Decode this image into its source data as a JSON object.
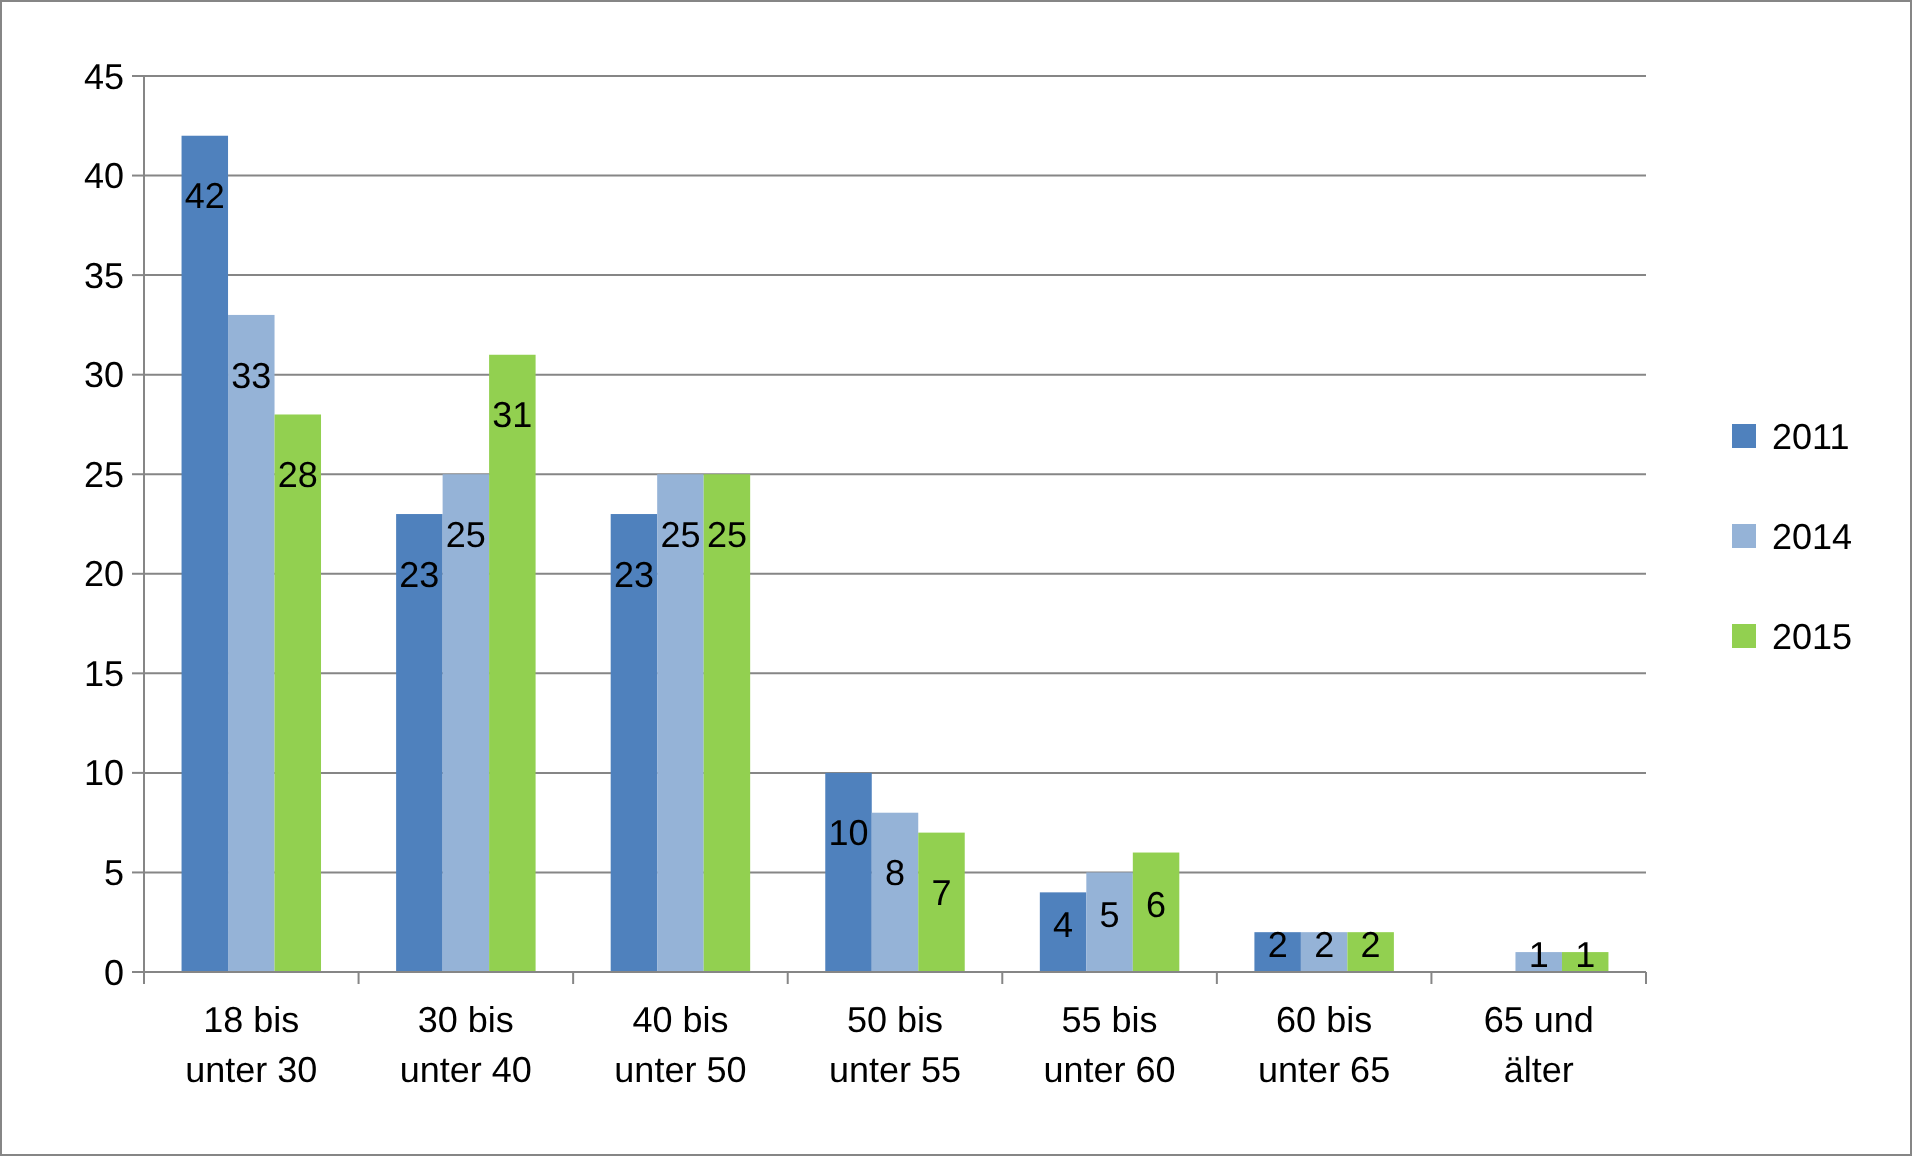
{
  "chart_data": {
    "type": "bar",
    "categories": [
      "18 bis unter 30",
      "30 bis unter 40",
      "40 bis unter 50",
      "50 bis unter 55",
      "55 bis unter 60",
      "60 bis unter 65",
      "65 und älter"
    ],
    "series": [
      {
        "name": "2011",
        "color": "#4f81bd",
        "values": [
          42,
          23,
          23,
          10,
          4,
          2,
          null
        ]
      },
      {
        "name": "2014",
        "color": "#95b3d7",
        "values": [
          33,
          25,
          25,
          8,
          5,
          2,
          1
        ]
      },
      {
        "name": "2015",
        "color": "#92d050",
        "values": [
          28,
          31,
          25,
          7,
          6,
          2,
          1
        ]
      }
    ],
    "ylim": [
      0,
      45
    ],
    "yticks": [
      0,
      5,
      10,
      15,
      20,
      25,
      30,
      35,
      40,
      45
    ],
    "grid": "y",
    "legend": "right",
    "data_labels": true
  }
}
